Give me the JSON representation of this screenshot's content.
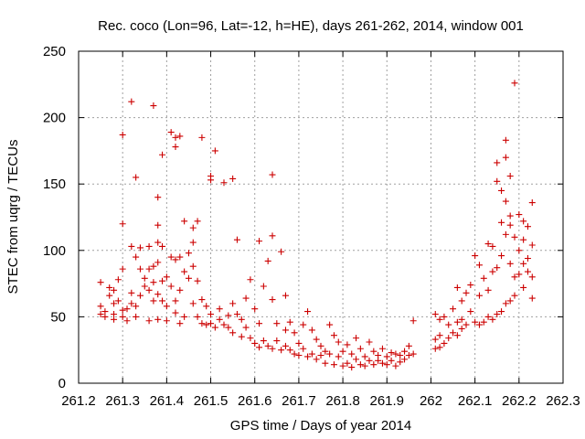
{
  "chart_data": {
    "type": "scatter",
    "title": "Rec. coco (Lon=96, Lat=-12, h=HE), days 261-262, 2014, window 001",
    "xlabel": "GPS time / Days of year 2014",
    "ylabel": "STEC from uqrg / TECUs",
    "xlim": [
      261.2,
      262.3
    ],
    "ylim": [
      0,
      250
    ],
    "x_ticks": [
      "261.2",
      "261.3",
      "261.4",
      "261.5",
      "261.6",
      "261.7",
      "261.8",
      "261.9",
      "262",
      "262.1",
      "262.2",
      "262.3"
    ],
    "y_ticks": [
      "0",
      "50",
      "100",
      "150",
      "200",
      "250"
    ],
    "grid": true,
    "marker": "plus",
    "color": "#cc0000",
    "series": [
      {
        "points": [
          [
            261.25,
            76
          ],
          [
            261.25,
            58
          ],
          [
            261.25,
            52
          ],
          [
            261.26,
            54
          ],
          [
            261.26,
            50
          ],
          [
            261.27,
            72
          ],
          [
            261.27,
            66
          ],
          [
            261.28,
            70
          ],
          [
            261.28,
            60
          ],
          [
            261.28,
            52
          ],
          [
            261.28,
            48
          ],
          [
            261.29,
            78
          ],
          [
            261.29,
            62
          ],
          [
            261.3,
            86
          ],
          [
            261.3,
            120
          ],
          [
            261.3,
            187
          ],
          [
            261.3,
            55
          ],
          [
            261.3,
            50
          ],
          [
            261.31,
            56
          ],
          [
            261.31,
            47
          ],
          [
            261.32,
            212
          ],
          [
            261.32,
            103
          ],
          [
            261.32,
            68
          ],
          [
            261.32,
            60
          ],
          [
            261.33,
            155
          ],
          [
            261.33,
            95
          ],
          [
            261.33,
            58
          ],
          [
            261.33,
            50
          ],
          [
            261.34,
            102
          ],
          [
            261.34,
            86
          ],
          [
            261.34,
            66
          ],
          [
            261.35,
            79
          ],
          [
            261.35,
            73
          ],
          [
            261.36,
            103
          ],
          [
            261.36,
            86
          ],
          [
            261.36,
            70
          ],
          [
            261.36,
            47
          ],
          [
            261.37,
            209
          ],
          [
            261.37,
            88
          ],
          [
            261.37,
            76
          ],
          [
            261.37,
            62
          ],
          [
            261.38,
            140
          ],
          [
            261.38,
            119
          ],
          [
            261.38,
            106
          ],
          [
            261.38,
            91
          ],
          [
            261.38,
            67
          ],
          [
            261.38,
            48
          ],
          [
            261.39,
            172
          ],
          [
            261.39,
            103
          ],
          [
            261.39,
            77
          ],
          [
            261.39,
            62
          ],
          [
            261.4,
            80
          ],
          [
            261.4,
            58
          ],
          [
            261.4,
            47
          ],
          [
            261.41,
            189
          ],
          [
            261.41,
            95
          ],
          [
            261.41,
            73
          ],
          [
            261.42,
            178
          ],
          [
            261.42,
            185
          ],
          [
            261.42,
            93
          ],
          [
            261.42,
            62
          ],
          [
            261.42,
            53
          ],
          [
            261.43,
            186
          ],
          [
            261.43,
            95
          ],
          [
            261.43,
            70
          ],
          [
            261.43,
            45
          ],
          [
            261.44,
            122
          ],
          [
            261.44,
            84
          ],
          [
            261.44,
            50
          ],
          [
            261.45,
            98
          ],
          [
            261.45,
            79
          ],
          [
            261.46,
            117
          ],
          [
            261.46,
            106
          ],
          [
            261.46,
            88
          ],
          [
            261.46,
            60
          ],
          [
            261.47,
            122
          ],
          [
            261.47,
            77
          ],
          [
            261.47,
            50
          ],
          [
            261.48,
            185
          ],
          [
            261.48,
            63
          ],
          [
            261.48,
            45
          ],
          [
            261.49,
            58
          ],
          [
            261.49,
            44
          ],
          [
            261.5,
            156
          ],
          [
            261.5,
            153
          ],
          [
            261.5,
            52
          ],
          [
            261.5,
            45
          ],
          [
            261.51,
            175
          ],
          [
            261.51,
            42
          ],
          [
            261.52,
            56
          ],
          [
            261.52,
            48
          ],
          [
            261.53,
            151
          ],
          [
            261.53,
            44
          ],
          [
            261.54,
            51
          ],
          [
            261.54,
            42
          ],
          [
            261.55,
            154
          ],
          [
            261.55,
            60
          ],
          [
            261.55,
            38
          ],
          [
            261.56,
            108
          ],
          [
            261.56,
            52
          ],
          [
            261.57,
            48
          ],
          [
            261.57,
            35
          ],
          [
            261.58,
            64
          ],
          [
            261.58,
            42
          ],
          [
            261.59,
            78
          ],
          [
            261.59,
            34
          ],
          [
            261.6,
            56
          ],
          [
            261.6,
            30
          ],
          [
            261.61,
            107
          ],
          [
            261.61,
            45
          ],
          [
            261.61,
            27
          ],
          [
            261.62,
            73
          ],
          [
            261.62,
            32
          ],
          [
            261.63,
            92
          ],
          [
            261.63,
            28
          ],
          [
            261.64,
            157
          ],
          [
            261.64,
            111
          ],
          [
            261.64,
            63
          ],
          [
            261.64,
            26
          ],
          [
            261.65,
            45
          ],
          [
            261.65,
            32
          ],
          [
            261.66,
            99
          ],
          [
            261.66,
            25
          ],
          [
            261.67,
            66
          ],
          [
            261.67,
            40
          ],
          [
            261.67,
            28
          ],
          [
            261.68,
            46
          ],
          [
            261.68,
            25
          ],
          [
            261.69,
            38
          ],
          [
            261.69,
            22
          ],
          [
            261.7,
            30
          ],
          [
            261.7,
            21
          ],
          [
            261.71,
            44
          ],
          [
            261.71,
            26
          ],
          [
            261.72,
            54
          ],
          [
            261.72,
            20
          ],
          [
            261.73,
            40
          ],
          [
            261.73,
            22
          ],
          [
            261.74,
            33
          ],
          [
            261.74,
            18
          ],
          [
            261.75,
            28
          ],
          [
            261.75,
            21
          ],
          [
            261.76,
            24
          ],
          [
            261.76,
            15
          ],
          [
            261.77,
            44
          ],
          [
            261.77,
            22
          ],
          [
            261.78,
            36
          ],
          [
            261.78,
            14
          ],
          [
            261.79,
            31
          ],
          [
            261.79,
            20
          ],
          [
            261.8,
            24
          ],
          [
            261.8,
            13
          ],
          [
            261.81,
            29
          ],
          [
            261.81,
            15
          ],
          [
            261.82,
            22
          ],
          [
            261.82,
            12
          ],
          [
            261.83,
            34
          ],
          [
            261.83,
            18
          ],
          [
            261.84,
            26
          ],
          [
            261.84,
            14
          ],
          [
            261.85,
            20
          ],
          [
            261.85,
            13
          ],
          [
            261.86,
            31
          ],
          [
            261.86,
            17
          ],
          [
            261.87,
            24
          ],
          [
            261.87,
            14
          ],
          [
            261.88,
            21
          ],
          [
            261.88,
            17
          ],
          [
            261.89,
            26
          ],
          [
            261.89,
            15
          ],
          [
            261.9,
            20
          ],
          [
            261.9,
            14
          ],
          [
            261.91,
            23
          ],
          [
            261.91,
            17
          ],
          [
            261.92,
            22
          ],
          [
            261.92,
            13
          ],
          [
            261.93,
            21
          ],
          [
            261.93,
            16
          ],
          [
            261.94,
            24
          ],
          [
            261.94,
            18
          ],
          [
            261.95,
            28
          ],
          [
            261.95,
            21
          ],
          [
            261.96,
            47
          ],
          [
            261.96,
            22
          ],
          [
            262.01,
            52
          ],
          [
            262.01,
            33
          ],
          [
            262.01,
            26
          ],
          [
            262.02,
            48
          ],
          [
            262.02,
            36
          ],
          [
            262.02,
            27
          ],
          [
            262.03,
            50
          ],
          [
            262.03,
            30
          ],
          [
            262.04,
            44
          ],
          [
            262.04,
            34
          ],
          [
            262.05,
            56
          ],
          [
            262.05,
            38
          ],
          [
            262.06,
            72
          ],
          [
            262.06,
            46
          ],
          [
            262.06,
            36
          ],
          [
            262.07,
            62
          ],
          [
            262.07,
            48
          ],
          [
            262.07,
            41
          ],
          [
            262.08,
            68
          ],
          [
            262.08,
            44
          ],
          [
            262.09,
            74
          ],
          [
            262.09,
            54
          ],
          [
            262.1,
            96
          ],
          [
            262.1,
            46
          ],
          [
            262.11,
            89
          ],
          [
            262.11,
            66
          ],
          [
            262.11,
            44
          ],
          [
            262.12,
            79
          ],
          [
            262.12,
            46
          ],
          [
            262.13,
            105
          ],
          [
            262.13,
            70
          ],
          [
            262.13,
            50
          ],
          [
            262.14,
            103
          ],
          [
            262.14,
            84
          ],
          [
            262.14,
            48
          ],
          [
            262.15,
            166
          ],
          [
            262.15,
            152
          ],
          [
            262.15,
            87
          ],
          [
            262.15,
            52
          ],
          [
            262.16,
            145
          ],
          [
            262.16,
            121
          ],
          [
            262.16,
            96
          ],
          [
            262.16,
            54
          ],
          [
            262.17,
            183
          ],
          [
            262.17,
            170
          ],
          [
            262.17,
            137
          ],
          [
            262.17,
            112
          ],
          [
            262.17,
            60
          ],
          [
            262.18,
            156
          ],
          [
            262.18,
            126
          ],
          [
            262.18,
            119
          ],
          [
            262.18,
            90
          ],
          [
            262.18,
            62
          ],
          [
            262.19,
            226
          ],
          [
            262.19,
            110
          ],
          [
            262.19,
            80
          ],
          [
            262.19,
            66
          ],
          [
            262.2,
            127
          ],
          [
            262.2,
            100
          ],
          [
            262.2,
            82
          ],
          [
            262.21,
            122
          ],
          [
            262.21,
            108
          ],
          [
            262.21,
            90
          ],
          [
            262.21,
            72
          ],
          [
            262.22,
            118
          ],
          [
            262.22,
            94
          ],
          [
            262.22,
            84
          ],
          [
            262.23,
            136
          ],
          [
            262.23,
            104
          ],
          [
            262.23,
            80
          ],
          [
            262.23,
            64
          ]
        ]
      }
    ]
  }
}
